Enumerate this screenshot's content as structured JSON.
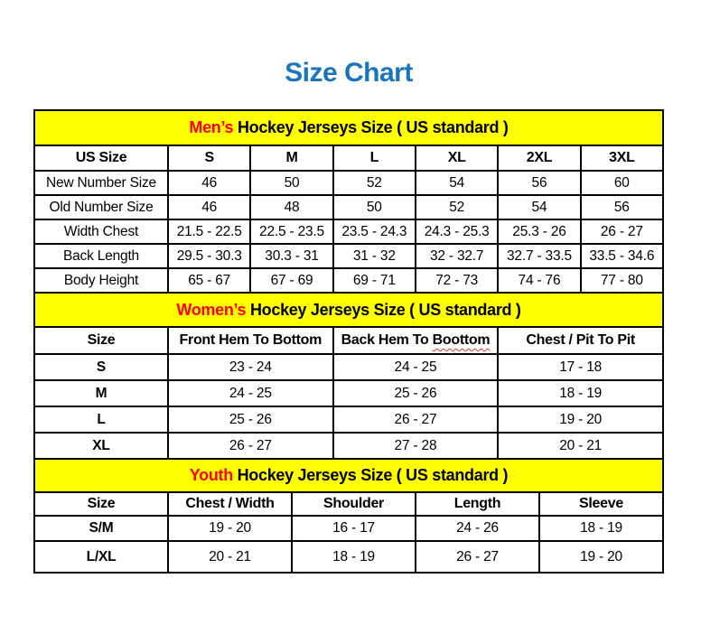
{
  "page": {
    "title": "Size Chart"
  },
  "colors": {
    "title_blue": "#1B75BC",
    "band_yellow": "#FFFF00",
    "highlight_red": "#FF0000",
    "border_black": "#000000"
  },
  "tables": {
    "men": {
      "band": {
        "highlight": "Men’s",
        "rest": "Hockey Jerseys Size ( US standard )"
      },
      "columns": [
        "US Size",
        "S",
        "M",
        "L",
        "XL",
        "2XL",
        "3XL"
      ],
      "rows": [
        {
          "label": "New Number Size",
          "values": [
            "46",
            "50",
            "52",
            "54",
            "56",
            "60"
          ]
        },
        {
          "label": "Old Number Size",
          "values": [
            "46",
            "48",
            "50",
            "52",
            "54",
            "56"
          ]
        },
        {
          "label": "Width Chest",
          "values": [
            "21.5 - 22.5",
            "22.5 - 23.5",
            "23.5 - 24.3",
            "24.3 - 25.3",
            "25.3 - 26",
            "26 - 27"
          ]
        },
        {
          "label": "Back Length",
          "values": [
            "29.5 - 30.3",
            "30.3 - 31",
            "31 - 32",
            "32 - 32.7",
            "32.7 - 33.5",
            "33.5 - 34.6"
          ]
        },
        {
          "label": "Body Height",
          "values": [
            "65 - 67",
            "67 - 69",
            "69 - 71",
            "72 - 73",
            "74 - 76",
            "77 - 80"
          ]
        }
      ]
    },
    "women": {
      "band": {
        "highlight": "Women’s",
        "rest": "Hockey Jerseys Size ( US standard )"
      },
      "columns": {
        "size": "Size",
        "front_hem": "Front Hem To Bottom",
        "back_hem_prefix": "Back Hem To",
        "back_hem_misspelled": "Boottom",
        "chest": "Chest / Pit To Pit"
      },
      "rows": [
        {
          "label": "S",
          "values": [
            "23 - 24",
            "24 - 25",
            "17 - 18"
          ]
        },
        {
          "label": "M",
          "values": [
            "24 - 25",
            "25 - 26",
            "18 - 19"
          ]
        },
        {
          "label": "L",
          "values": [
            "25 - 26",
            "26 - 27",
            "19 - 20"
          ]
        },
        {
          "label": "XL",
          "values": [
            "26 - 27",
            "27 - 28",
            "20 - 21"
          ]
        }
      ]
    },
    "youth": {
      "band": {
        "highlight": "Youth",
        "rest": "Hockey Jerseys Size ( US standard )"
      },
      "columns": [
        "Size",
        "Chest / Width",
        "Shoulder",
        "Length",
        "Sleeve"
      ],
      "rows": [
        {
          "label": "S/M",
          "values": [
            "19 - 20",
            "16 - 17",
            "24 - 26",
            "18 - 19"
          ]
        },
        {
          "label": "L/XL",
          "values": [
            "20 - 21",
            "18 - 19",
            "26 - 27",
            "19 - 20"
          ]
        }
      ]
    }
  }
}
